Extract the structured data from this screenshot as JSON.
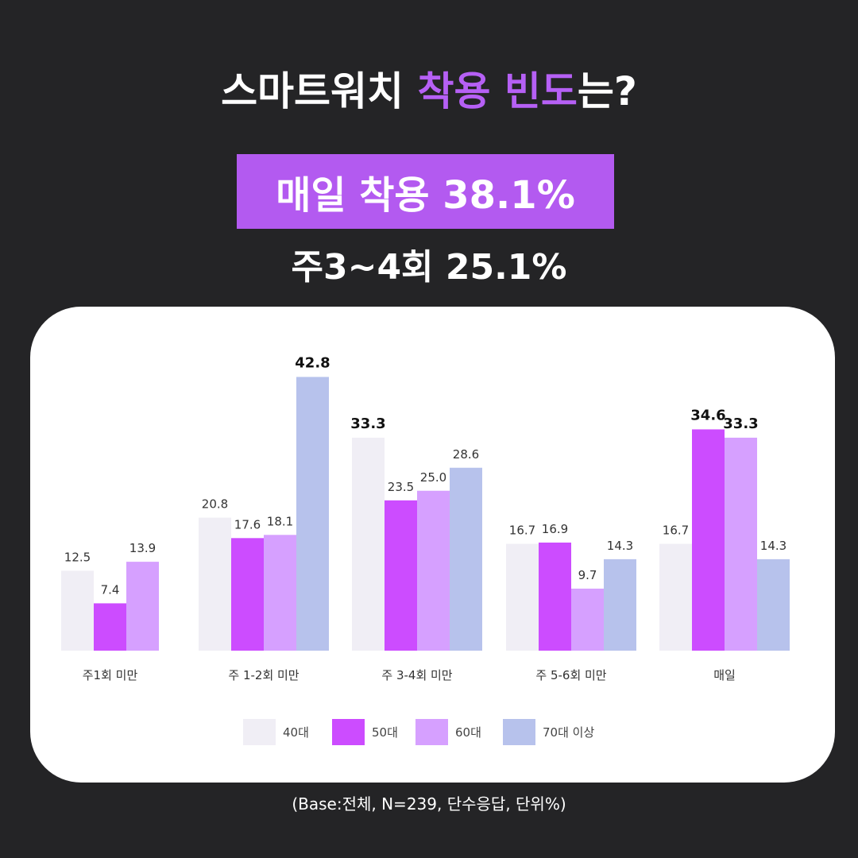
{
  "header": {
    "title_prefix": "스마트워치 ",
    "title_highlight": "착용 빈도",
    "title_suffix": "는?",
    "headline": "매일 착용 38.1%",
    "subheadline": "주3~4회 25.1%"
  },
  "footnote": "(Base:전체, N=239, 단수응답, 단위%)",
  "colors": {
    "background": "#242426",
    "accent": "#b35af0",
    "series": [
      "#f0eef5",
      "#cc4cff",
      "#d6a0ff",
      "#b7c2ec"
    ]
  },
  "chart_data": {
    "type": "bar",
    "title": "",
    "xlabel": "",
    "ylabel": "",
    "ylim": [
      0,
      45
    ],
    "grid": false,
    "legend_position": "bottom",
    "categories": [
      "주1회 미만",
      "주 1-2회 미만",
      "주 3-4회 미만",
      "주 5-6회 미만",
      "매일"
    ],
    "series": [
      {
        "name": "40대",
        "values": [
          12.5,
          20.8,
          33.3,
          16.7,
          16.7
        ]
      },
      {
        "name": "50대",
        "values": [
          7.4,
          17.6,
          23.5,
          16.9,
          34.6
        ]
      },
      {
        "name": "60대",
        "values": [
          13.9,
          18.1,
          25.0,
          9.7,
          33.3
        ]
      },
      {
        "name": "70대 이상",
        "values": [
          null,
          42.8,
          28.6,
          14.3,
          14.3
        ]
      }
    ],
    "labels": [
      [
        "12.5",
        "7.4",
        "13.9",
        ""
      ],
      [
        "20.8",
        "17.6",
        "18.1",
        "42.8"
      ],
      [
        "33.3",
        "23.5",
        "25.0",
        "28.6"
      ],
      [
        "16.7",
        "16.9",
        "9.7",
        "14.3"
      ],
      [
        "16.7",
        "34.6",
        "33.3",
        "14.3"
      ]
    ],
    "bold_labels": [
      [
        false,
        false,
        false,
        false
      ],
      [
        false,
        false,
        false,
        true
      ],
      [
        true,
        false,
        false,
        false
      ],
      [
        false,
        false,
        false,
        false
      ],
      [
        false,
        true,
        true,
        false
      ]
    ]
  }
}
